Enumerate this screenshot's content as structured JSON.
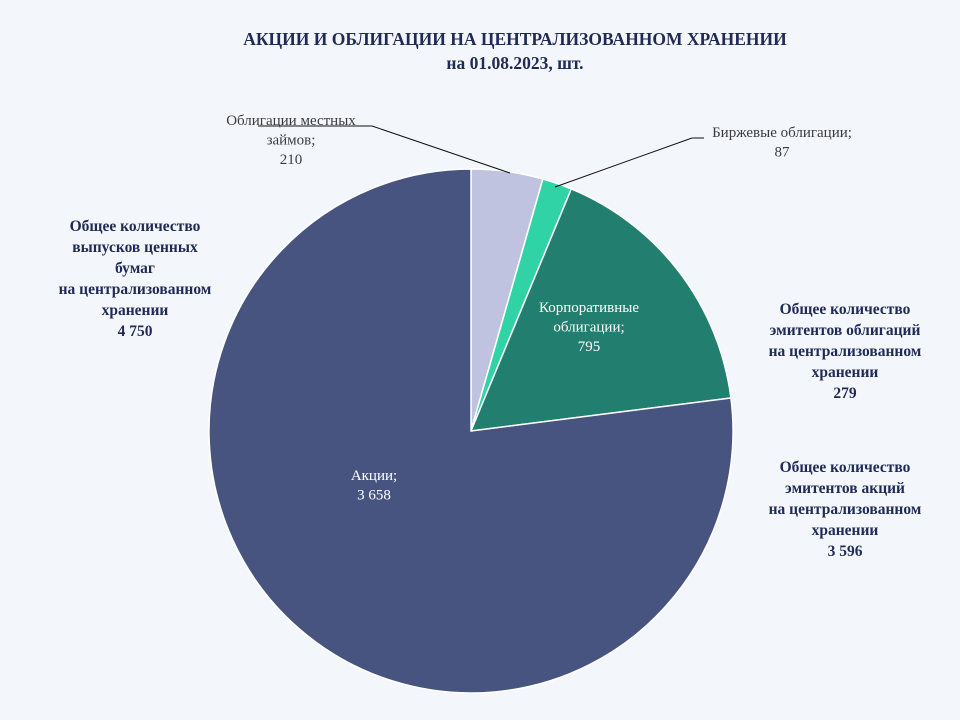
{
  "chart_data": {
    "type": "pie",
    "title": "АКЦИИ И ОБЛИГАЦИИ  НА ЦЕНТРАЛИЗОВАННОМ  ХРАНЕНИИ",
    "subtitle": "на 01.08.2023, шт.",
    "slices": [
      {
        "name": "Облигации местных займов",
        "label_lines": [
          "Облигации местных",
          "займов;"
        ],
        "value": 210,
        "value_label": "210",
        "color": "#bfc3e0"
      },
      {
        "name": "Биржевые облигации",
        "label_lines": [
          "Биржевые облигации;"
        ],
        "value": 87,
        "value_label": "87",
        "color": "#2fd3a6"
      },
      {
        "name": "Корпоративные облигации",
        "label_lines": [
          "Корпоративные",
          "облигации;"
        ],
        "value": 795,
        "value_label": "795",
        "color": "#227e6e"
      },
      {
        "name": "Акции",
        "label_lines": [
          "Акции;"
        ],
        "value": 3658,
        "value_label": "3 658",
        "color": "#485480"
      }
    ],
    "annotations": [
      {
        "id": "total-issues",
        "text": "Общее количество\nвыпусков ценных\nбумаг\nна централизованном\nхранении\n4 750"
      },
      {
        "id": "bond-issuers",
        "text": "Общее количество\nэмитентов облигаций\nна централизованном\nхранении\n279"
      },
      {
        "id": "share-issuers",
        "text": "Общее количество\nэмитентов акций\nна централизованном\nхранении\n3 596"
      }
    ]
  }
}
